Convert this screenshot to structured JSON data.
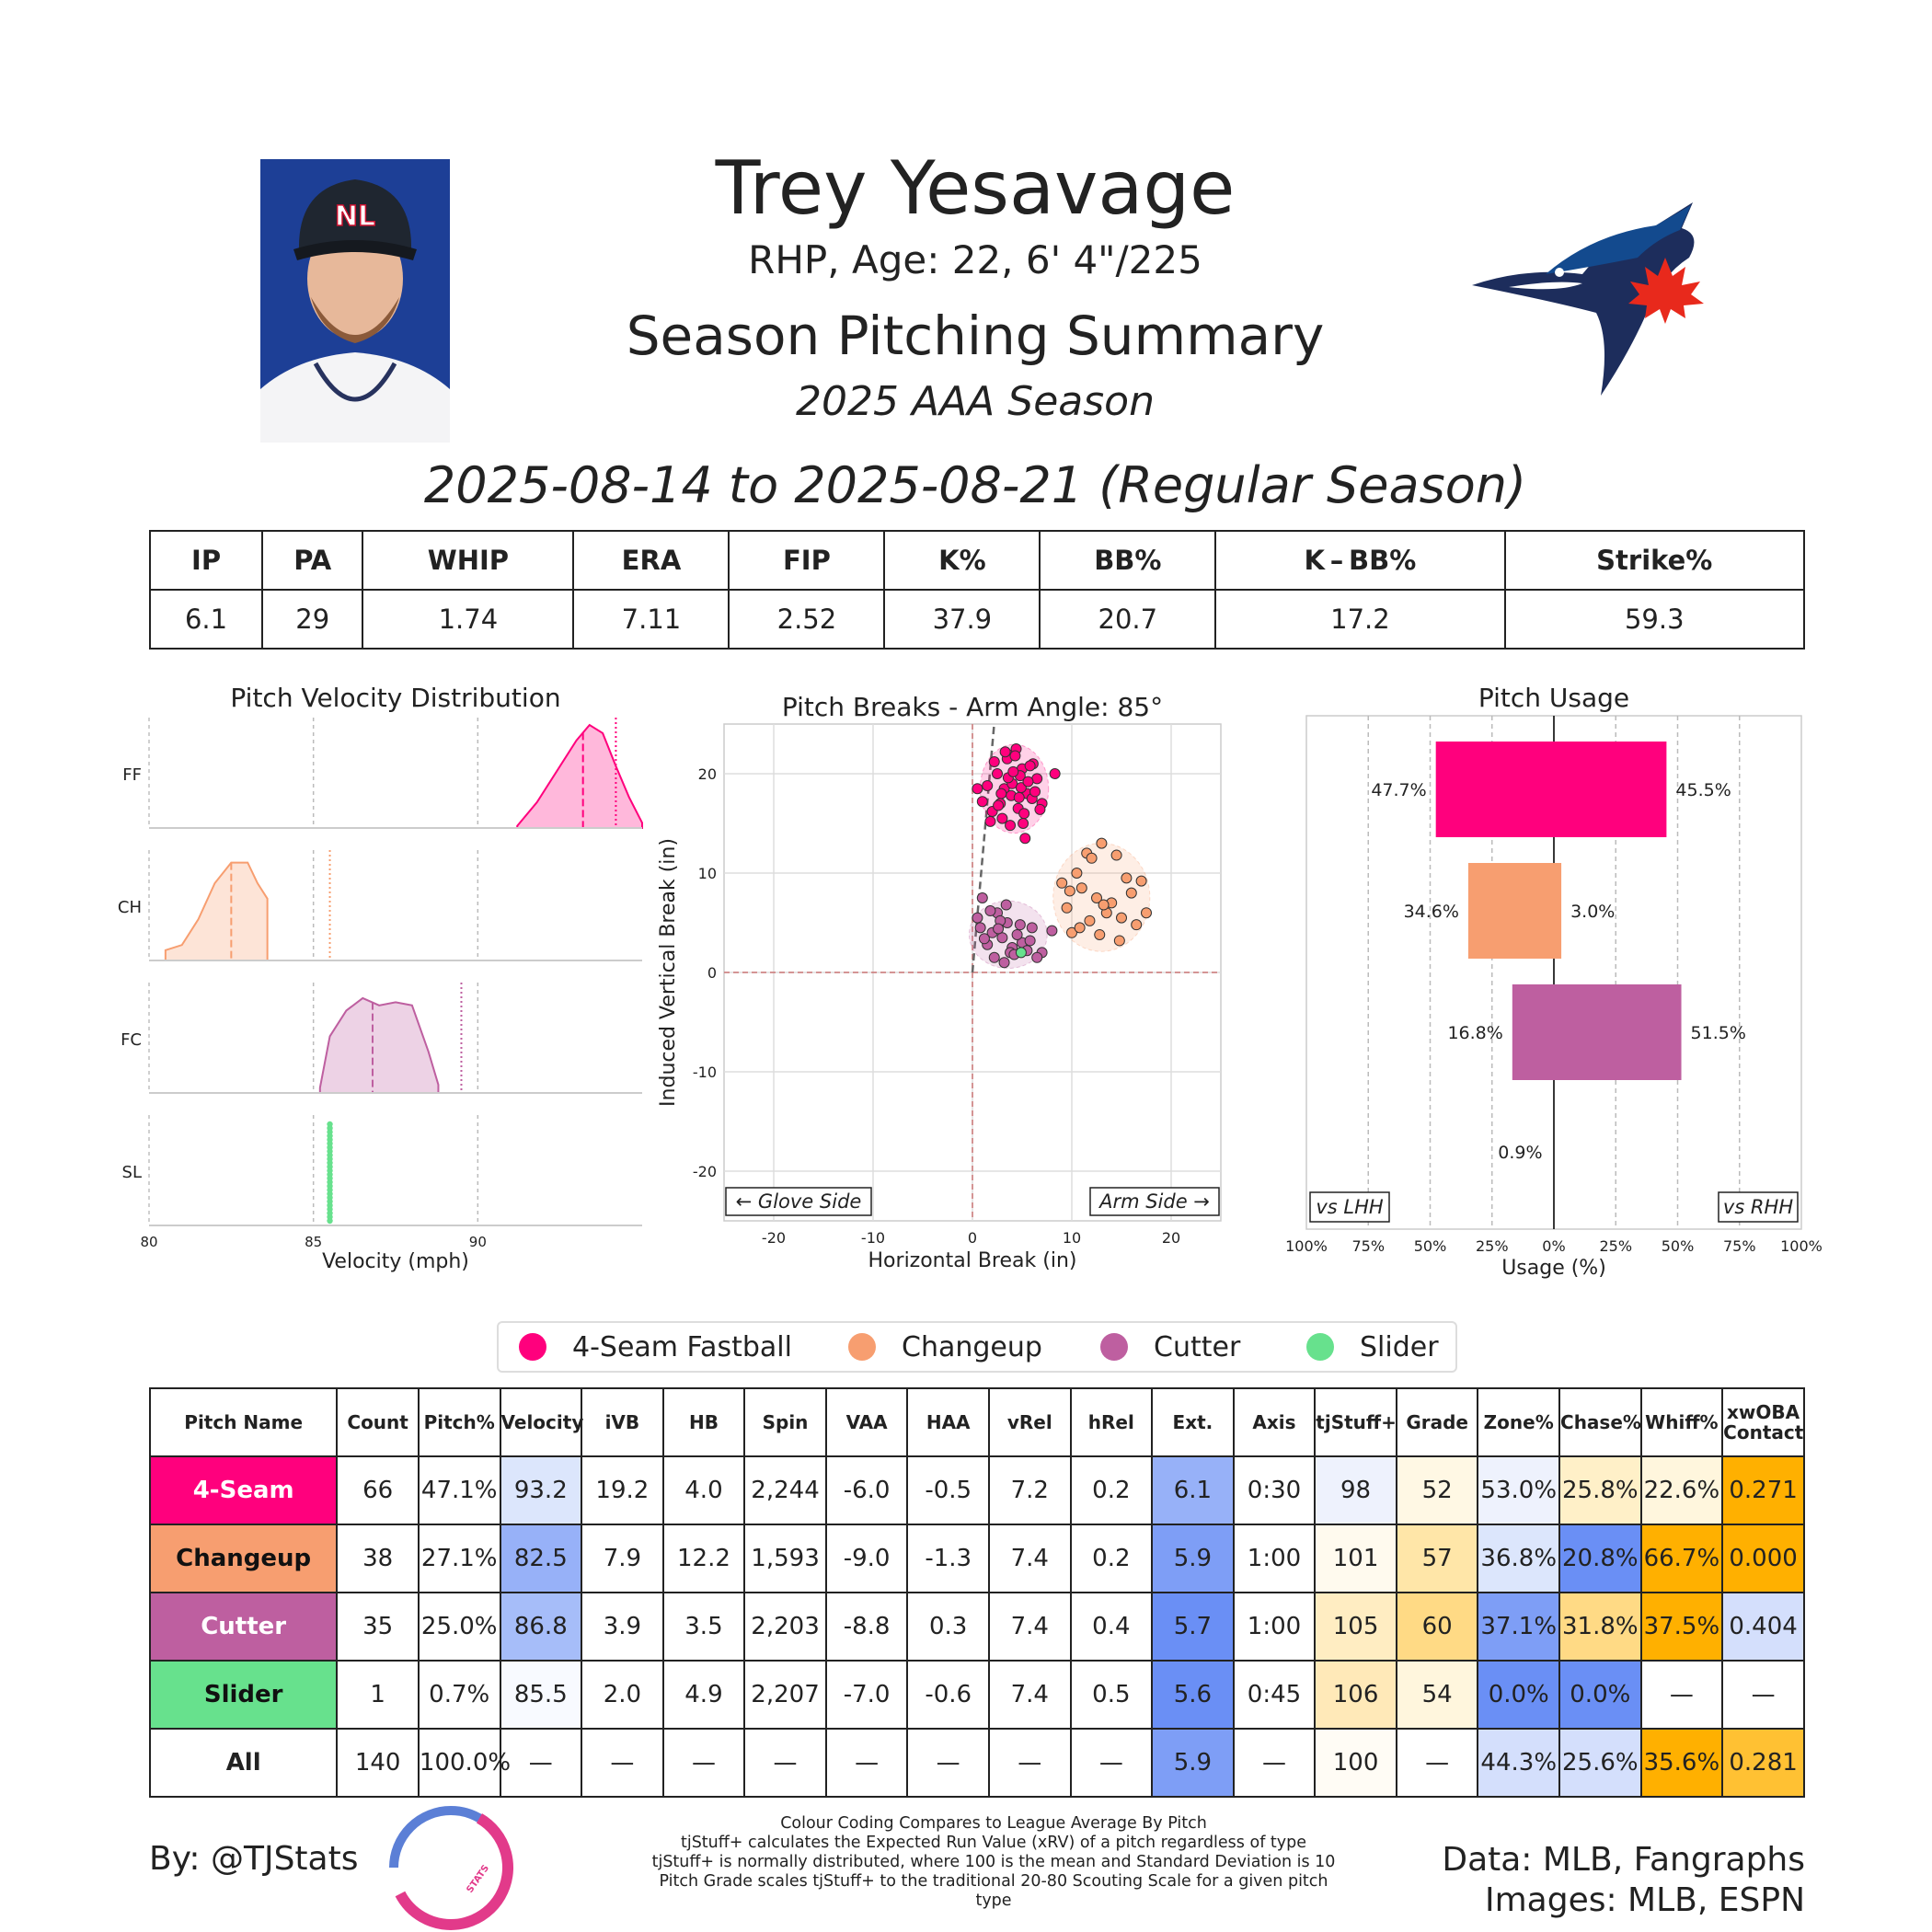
{
  "header": {
    "player_name": "Trey Yesavage",
    "player_info": "RHP, Age: 22, 6' 4\"/225",
    "summary_title": "Season Pitching Summary",
    "season_label": "2025 AAA Season",
    "date_range": "2025-08-14 to 2025-08-21 (Regular Season)",
    "cap_logo_text": "NL"
  },
  "summary": {
    "headers": [
      "IP",
      "PA",
      "WHIP",
      "ERA",
      "FIP",
      "K%",
      "BB%",
      "K – BB%",
      "Strike%"
    ],
    "values": [
      "6.1",
      "29",
      "1.74",
      "7.11",
      "2.52",
      "37.9",
      "20.7",
      "17.2",
      "59.3"
    ]
  },
  "colors": {
    "ff": "#FF007D",
    "ch": "#F79E70",
    "fc": "#BE5FA0",
    "sl": "#67E18D",
    "cold_strong": "#6A8FF5",
    "cold_mid": "#97B1F8",
    "cold_light": "#D9E3FC",
    "hot_strong": "#FFB000",
    "hot_mid": "#FFDA85",
    "hot_light": "#FFF1CF"
  },
  "chart_data": [
    {
      "type": "area",
      "title": "Pitch Velocity Distribution",
      "xlabel": "Velocity (mph)",
      "ylabel": "",
      "xlim": [
        80,
        95
      ],
      "xticks": [
        80,
        85,
        90
      ],
      "series": [
        {
          "name": "FF",
          "color_key": "ff",
          "mean": 93.2,
          "league_avg": 94.2,
          "x": [
            91.2,
            91.8,
            92.4,
            93.0,
            93.4,
            93.8,
            94.2,
            94.6,
            95.0
          ],
          "density": [
            0.02,
            0.25,
            0.55,
            0.85,
            1.0,
            0.92,
            0.6,
            0.3,
            0.05
          ]
        },
        {
          "name": "CH",
          "color_key": "ch",
          "mean": 82.5,
          "league_avg": 85.5,
          "x": [
            80.5,
            81.0,
            81.5,
            82.0,
            82.5,
            83.0,
            83.3,
            83.6
          ],
          "density": [
            0.1,
            0.15,
            0.4,
            0.75,
            0.95,
            0.95,
            0.75,
            0.6
          ]
        },
        {
          "name": "FC",
          "color_key": "fc",
          "mean": 86.8,
          "league_avg": 89.5,
          "x": [
            85.2,
            85.5,
            86.0,
            86.5,
            87.0,
            87.5,
            88.0,
            88.5,
            88.8
          ],
          "density": [
            0.05,
            0.55,
            0.8,
            0.92,
            0.85,
            0.88,
            0.85,
            0.4,
            0.08
          ]
        },
        {
          "name": "SL",
          "color_key": "sl",
          "mean": 85.5,
          "league_avg": 85.5,
          "x": [
            85.5
          ],
          "density": [
            1.0
          ]
        }
      ]
    },
    {
      "type": "scatter",
      "title": "Pitch Breaks - Arm Angle: 85°",
      "xlabel": "Horizontal Break (in)",
      "ylabel": "Induced Vertical Break (in)",
      "xlim": [
        -25,
        25
      ],
      "ylim": [
        -25,
        25
      ],
      "xticks": [
        -20,
        -10,
        0,
        10,
        20
      ],
      "yticks": [
        -20,
        -10,
        0,
        10,
        20
      ],
      "arm_angle": 85,
      "glove_side_label": "← Glove Side",
      "arm_side_label": "Arm Side →",
      "series": [
        {
          "name": "4-Seam Fastball",
          "color_key": "ff",
          "x": [
            4.2,
            3.5,
            5.0,
            4.8,
            6.1,
            2.5,
            3.2,
            4.0,
            5.5,
            6.0,
            1.5,
            0.5,
            2.8,
            3.9,
            4.6,
            5.2,
            6.5,
            7.0,
            3.0,
            2.0,
            4.4,
            5.8,
            4.9,
            3.6,
            2.2,
            1.0,
            5.1,
            6.3,
            4.1,
            3.3,
            2.6,
            4.7,
            5.6,
            3.8,
            4.3,
            8.3,
            5.3,
            2.9,
            1.8,
            6.8
          ],
          "y": [
            22.0,
            21.5,
            20.5,
            19.8,
            21.0,
            20.0,
            18.5,
            19.0,
            18.0,
            17.5,
            18.8,
            18.5,
            17.0,
            17.8,
            16.5,
            16.0,
            19.5,
            17.0,
            15.5,
            16.2,
            22.5,
            20.8,
            18.6,
            19.6,
            21.2,
            17.2,
            15.0,
            18.2,
            20.2,
            22.2,
            16.8,
            17.6,
            19.2,
            14.8,
            21.8,
            20.0,
            13.5,
            18.0,
            15.2,
            16.4
          ]
        },
        {
          "name": "Changeup",
          "color_key": "ch",
          "x": [
            9.0,
            10.5,
            11.5,
            12.0,
            13.0,
            14.5,
            15.5,
            16.0,
            17.0,
            12.5,
            11.0,
            9.5,
            10.0,
            13.5,
            14.0,
            15.0,
            17.5,
            16.5,
            12.8,
            11.8,
            10.8,
            14.8,
            13.2,
            9.8
          ],
          "y": [
            9.0,
            10.0,
            12.0,
            11.5,
            13.0,
            11.8,
            9.5,
            8.0,
            9.2,
            7.5,
            8.5,
            6.5,
            4.0,
            6.0,
            7.0,
            5.5,
            6.0,
            4.8,
            3.8,
            5.2,
            4.5,
            3.2,
            6.8,
            8.2
          ]
        },
        {
          "name": "Cutter",
          "color_key": "fc",
          "x": [
            0.5,
            1.0,
            2.0,
            2.5,
            3.0,
            3.5,
            4.0,
            5.0,
            6.0,
            7.0,
            8.0,
            1.5,
            2.2,
            3.2,
            4.5,
            5.5,
            6.5,
            0.8,
            1.8,
            2.8,
            3.8,
            4.8,
            5.8,
            3.4,
            2.6,
            4.2,
            1.2
          ],
          "y": [
            5.5,
            7.5,
            4.0,
            6.0,
            3.5,
            5.0,
            2.5,
            3.0,
            4.5,
            2.0,
            4.2,
            2.8,
            1.5,
            1.0,
            3.8,
            2.2,
            1.5,
            4.5,
            6.2,
            5.2,
            2.0,
            4.8,
            3.2,
            6.8,
            4.4,
            1.8,
            3.4
          ]
        },
        {
          "name": "Slider",
          "color_key": "sl",
          "x": [
            4.9
          ],
          "y": [
            2.0
          ]
        }
      ]
    },
    {
      "type": "bar",
      "title": "Pitch Usage",
      "xlabel": "Usage (%)",
      "ylabel": "",
      "xlim": [
        -100,
        100
      ],
      "xtick_labels": [
        "100%",
        "75%",
        "50%",
        "25%",
        "0%",
        "25%",
        "50%",
        "75%",
        "100%"
      ],
      "left_label": "vs LHH",
      "right_label": "vs RHH",
      "categories": [
        "4-Seam Fastball",
        "Changeup",
        "Cutter",
        "Slider"
      ],
      "color_keys": [
        "ff",
        "ch",
        "fc",
        "sl"
      ],
      "series": [
        {
          "name": "vs LHH",
          "values": [
            47.7,
            34.6,
            16.8,
            0.9
          ],
          "labels": [
            "47.7%",
            "34.6%",
            "16.8%",
            "0.9%"
          ]
        },
        {
          "name": "vs RHH",
          "values": [
            45.5,
            3.0,
            51.5,
            0.0
          ],
          "labels": [
            "45.5%",
            "3.0%",
            "51.5%",
            ""
          ]
        }
      ]
    }
  ],
  "legend": [
    {
      "label": "4-Seam Fastball",
      "color_key": "ff"
    },
    {
      "label": "Changeup",
      "color_key": "ch"
    },
    {
      "label": "Cutter",
      "color_key": "fc"
    },
    {
      "label": "Slider",
      "color_key": "sl"
    }
  ],
  "pitch_table": {
    "headers": [
      "Pitch Name",
      "Count",
      "Pitch%",
      "Velocity",
      "iVB",
      "HB",
      "Spin",
      "VAA",
      "HAA",
      "vRel",
      "hRel",
      "Ext.",
      "Axis",
      "tjStuff+",
      "Grade",
      "Zone%",
      "Chase%",
      "Whiff%",
      "xwOBA\nContact"
    ],
    "rows": [
      {
        "name": "4-Seam",
        "color_key": "ff",
        "text_white": true,
        "cells": [
          "66",
          "47.1%",
          "93.2",
          "19.2",
          "4.0",
          "2,244",
          "-6.0",
          "-0.5",
          "7.2",
          "0.2",
          "6.1",
          "0:30",
          "98",
          "52",
          "53.0%",
          "25.8%",
          "22.6%",
          "0.271"
        ],
        "shade": [
          "",
          "",
          "#DCE6FC",
          "",
          "",
          "",
          "",
          "",
          "",
          "",
          "#97B1F8",
          "",
          "#EEF2FD",
          "#FFF8E4",
          "#EEF2FD",
          "#FFF0C8",
          "#FFF6DD",
          "#FFB000"
        ]
      },
      {
        "name": "Changeup",
        "color_key": "ch",
        "text_white": false,
        "cells": [
          "38",
          "27.1%",
          "82.5",
          "7.9",
          "12.2",
          "1,593",
          "-9.0",
          "-1.3",
          "7.4",
          "0.2",
          "5.9",
          "1:00",
          "101",
          "57",
          "36.8%",
          "20.8%",
          "66.7%",
          "0.000"
        ],
        "shade": [
          "",
          "",
          "#97B1F8",
          "",
          "",
          "",
          "",
          "",
          "",
          "",
          "#7E9EF6",
          "",
          "#FFFAEE",
          "#FFE6A8",
          "#DCE6FC",
          "#6A8FF5",
          "#FFB000",
          "#FFB000"
        ]
      },
      {
        "name": "Cutter",
        "color_key": "fc",
        "text_white": true,
        "cells": [
          "35",
          "25.0%",
          "86.8",
          "3.9",
          "3.5",
          "2,203",
          "-8.8",
          "0.3",
          "7.4",
          "0.4",
          "5.7",
          "1:00",
          "105",
          "60",
          "37.1%",
          "31.8%",
          "37.5%",
          "0.404"
        ],
        "shade": [
          "",
          "",
          "#A6BDF9",
          "",
          "",
          "",
          "",
          "",
          "",
          "",
          "#6A8FF5",
          "",
          "#FFEDC2",
          "#FFDA85",
          "#7E9EF6",
          "#FFDA85",
          "#FFB000",
          "#D4DFFC"
        ]
      },
      {
        "name": "Slider",
        "color_key": "sl",
        "text_white": false,
        "cells": [
          "1",
          "0.7%",
          "85.5",
          "2.0",
          "4.9",
          "2,207",
          "-7.0",
          "-0.6",
          "7.4",
          "0.5",
          "5.6",
          "0:45",
          "106",
          "54",
          "0.0%",
          "0.0%",
          "—",
          "—"
        ],
        "shade": [
          "",
          "",
          "#F8FAFF",
          "",
          "",
          "",
          "",
          "",
          "",
          "",
          "#6A8FF5",
          "",
          "#FFE9B8",
          "#FFF6DD",
          "#6A8FF5",
          "#6A8FF5",
          "",
          ""
        ]
      },
      {
        "name": "All",
        "color_key": "",
        "text_white": false,
        "cells": [
          "140",
          "100.0%",
          "—",
          "—",
          "—",
          "—",
          "—",
          "—",
          "—",
          "—",
          "5.9",
          "—",
          "100",
          "—",
          "44.3%",
          "25.6%",
          "35.6%",
          "0.281"
        ],
        "shade": [
          "",
          "",
          "",
          "",
          "",
          "",
          "",
          "",
          "",
          "",
          "#7E9EF6",
          "",
          "#FFFCF5",
          "",
          "#D4DFFC",
          "#D4DFFC",
          "#FFB000",
          "#FFC133"
        ]
      }
    ]
  },
  "footer": {
    "byline": "By: @TJStats",
    "logo_text": "STATS",
    "notes": [
      "Colour Coding Compares to League Average By Pitch",
      "tjStuff+ calculates the Expected Run Value (xRV) of a pitch regardless of type",
      "tjStuff+ is normally distributed, where 100 is the mean and Standard Deviation is 10",
      "Pitch Grade scales tjStuff+ to the traditional 20-80 Scouting Scale for a given pitch type"
    ],
    "credits_line1": "Data: MLB, Fangraphs",
    "credits_line2": "Images: MLB, ESPN"
  }
}
